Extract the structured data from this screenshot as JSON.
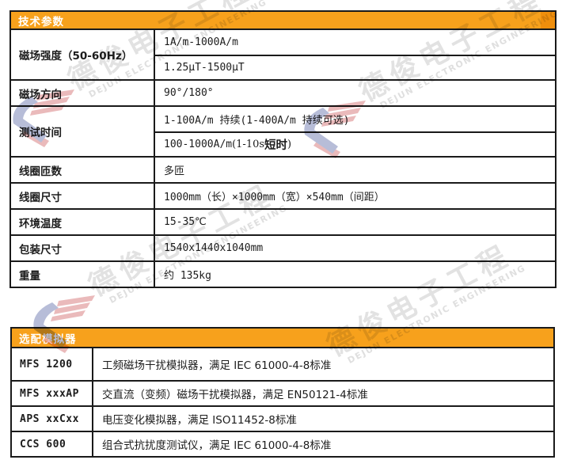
{
  "colors": {
    "header_orange": "#F7A11C",
    "header_orange_cap": "#EF8E0C",
    "table_border": "#1a1a1a",
    "text": "#1c1c1c",
    "watermark_gray": "#a9a9a9",
    "watermark_logo_red": "#c23537",
    "watermark_logo_blue": "#2c3e8c"
  },
  "watermark": {
    "cn": "德俊电子工程",
    "en": "DEJUN ELECTRONIC ENGINEERING"
  },
  "table1": {
    "header": "技术参数",
    "rows": [
      {
        "label": "磁场强度（50-60Hz）",
        "cells": [
          {
            "text": "1A/m-1000A/m"
          },
          {
            "text": "1.25μT-1500μT"
          }
        ]
      },
      {
        "label": "磁场方向",
        "cells": [
          {
            "text": "90°/180°"
          }
        ]
      },
      {
        "label": "测试时间",
        "cells": [
          {
            "text": "1-100A/m 持续(1-400A/m 持续可选)"
          },
          {
            "text": "100-1000A/m",
            "serif": "(1-10s ",
            "serif_bold": "短时",
            "serif_end": ")"
          }
        ]
      },
      {
        "label": "线圈匝数",
        "cells": [
          {
            "text": "多匝"
          }
        ]
      },
      {
        "label": "线圈尺寸",
        "cells": [
          {
            "text": "1000mm（长）×1000mm（宽）×540mm（间距）"
          }
        ]
      },
      {
        "label": "环境温度",
        "cells": [
          {
            "text": "15-35℃"
          }
        ]
      },
      {
        "label": "包装尺寸",
        "cells": [
          {
            "text": "1540x1440x1040mm"
          }
        ]
      },
      {
        "label": "重量",
        "cells": [
          {
            "text": "约 135kg"
          }
        ]
      }
    ]
  },
  "table2": {
    "header": "选配模拟器",
    "rows": [
      {
        "model": "MFS 1200",
        "desc": "工频磁场干扰模拟器，满足 IEC 61000-4-8标准"
      },
      {
        "model": "MFS xxxAP",
        "desc": "交直流（变频）磁场干扰模拟器，满足 EN50121-4标准"
      },
      {
        "model": "APS xxCxx",
        "desc": "电压变化模拟器，满足 ISO11452-8标准"
      },
      {
        "model": "CCS 600",
        "desc": "组合式抗扰度测试仪，满足 IEC 61000-4-8标准"
      }
    ]
  }
}
